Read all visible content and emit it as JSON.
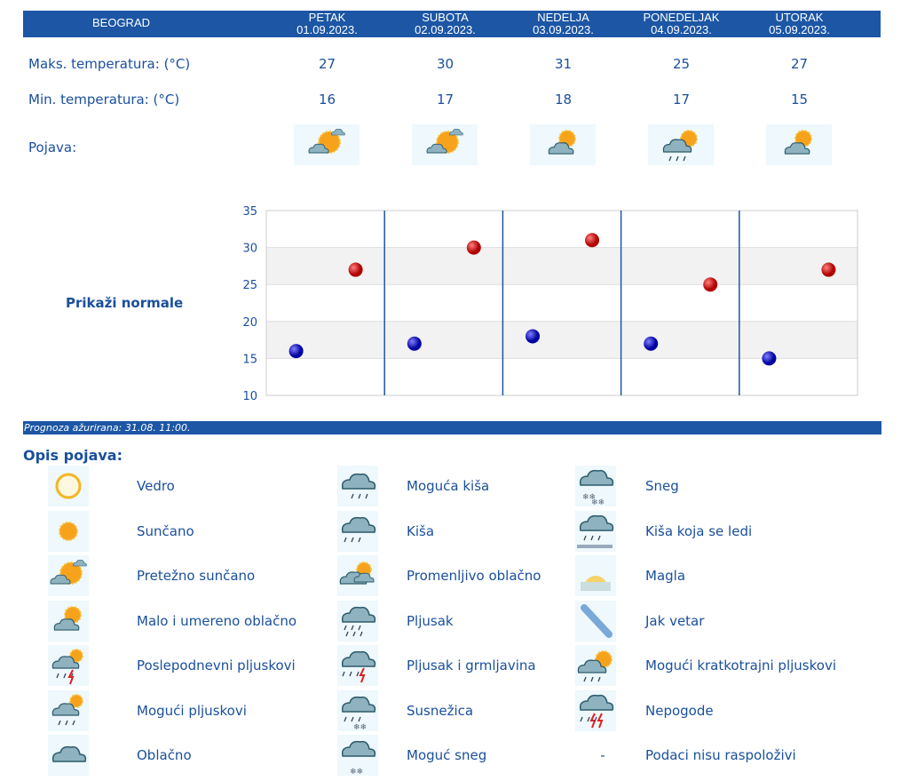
{
  "header": {
    "city": "BEOGRAD",
    "days": [
      {
        "name": "PETAK",
        "date": "01.09.2023."
      },
      {
        "name": "SUBOTA",
        "date": "02.09.2023."
      },
      {
        "name": "NEDELJA",
        "date": "03.09.2023."
      },
      {
        "name": "PONEDELJAK",
        "date": "04.09.2023."
      },
      {
        "name": "UTORAK",
        "date": "05.09.2023."
      }
    ]
  },
  "rows": {
    "max_label": "Maks. temperatura: (°C)",
    "min_label": "Min. temperatura: (°C)",
    "phenomenon_label": "Pojava:",
    "max": [
      "27",
      "30",
      "31",
      "25",
      "27"
    ],
    "min": [
      "16",
      "17",
      "18",
      "17",
      "15"
    ],
    "icons": [
      "pretezno-suncano",
      "pretezno-suncano",
      "malo-oblacno",
      "moguci-kratkotrajni-pljuskovi",
      "malo-oblacno"
    ]
  },
  "normals_link": "Prikaži normale",
  "chart_data": {
    "type": "scatter",
    "categories": [
      "01.09.2023.",
      "02.09.2023.",
      "03.09.2023.",
      "04.09.2023.",
      "05.09.2023."
    ],
    "series": [
      {
        "values": [
          27,
          30,
          31,
          25,
          27
        ],
        "color": "#d40000"
      },
      {
        "values": [
          16,
          17,
          18,
          17,
          15
        ],
        "color": "#0010c8"
      }
    ],
    "ylim": [
      10,
      35
    ],
    "yticks": [
      "35",
      "30",
      "25",
      "20",
      "15",
      "10"
    ],
    "grid": true
  },
  "updated": "Prognoza ažurirana:  31.08. 11:00.",
  "legend": {
    "title": "Opis pojava:",
    "items": [
      {
        "icon": "vedro",
        "label": "Vedro"
      },
      {
        "icon": "suncano",
        "label": "Sunčano"
      },
      {
        "icon": "pretezno-suncano",
        "label": "Pretežno sunčano"
      },
      {
        "icon": "malo-oblacno",
        "label": "Malo i umereno oblačno"
      },
      {
        "icon": "poslepodnevni-pljuskovi",
        "label": "Poslepodnevni pljuskovi"
      },
      {
        "icon": "moguci-pljuskovi",
        "label": "Mogući pljuskovi"
      },
      {
        "icon": "oblacno",
        "label": "Oblačno"
      },
      {
        "icon": "moguca-kisa",
        "label": "Moguća kiša"
      },
      {
        "icon": "kisa",
        "label": "Kiša"
      },
      {
        "icon": "promenljivo-oblacno",
        "label": "Promenljivo oblačno"
      },
      {
        "icon": "pljusak",
        "label": "Pljusak"
      },
      {
        "icon": "pljusak-grmljavina",
        "label": "Pljusak i grmljavina"
      },
      {
        "icon": "susnezica",
        "label": "Susnežica"
      },
      {
        "icon": "moguc-sneg",
        "label": "Moguć sneg"
      },
      {
        "icon": "sneg",
        "label": "Sneg"
      },
      {
        "icon": "kisa-ledi",
        "label": "Kiša koja se ledi"
      },
      {
        "icon": "magla",
        "label": "Magla"
      },
      {
        "icon": "jak-vetar",
        "label": "Jak vetar"
      },
      {
        "icon": "moguci-kratkotrajni-pljuskovi",
        "label": "Mogući kratkotrajni pljuskovi"
      },
      {
        "icon": "nepogode",
        "label": "Nepogode"
      },
      {
        "icon": "dash",
        "dash": "-",
        "label": "Podaci nisu raspoloživi"
      }
    ]
  }
}
